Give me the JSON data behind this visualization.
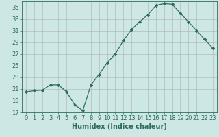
{
  "x": [
    0,
    1,
    2,
    3,
    4,
    5,
    6,
    7,
    8,
    9,
    10,
    11,
    12,
    13,
    14,
    15,
    16,
    17,
    18,
    19,
    20,
    21,
    22,
    23
  ],
  "y": [
    20.5,
    20.7,
    20.8,
    21.7,
    21.7,
    20.5,
    18.3,
    17.3,
    21.7,
    23.5,
    25.5,
    27.0,
    29.3,
    31.2,
    32.5,
    33.7,
    35.3,
    35.6,
    35.5,
    34.0,
    32.5,
    31.0,
    29.5,
    28.0
  ],
  "xlabel": "Humidex (Indice chaleur)",
  "ylim": [
    17,
    36
  ],
  "xlim": [
    -0.5,
    23.5
  ],
  "yticks": [
    17,
    19,
    21,
    23,
    25,
    27,
    29,
    31,
    33,
    35
  ],
  "xticks": [
    0,
    1,
    2,
    3,
    4,
    5,
    6,
    7,
    8,
    9,
    10,
    11,
    12,
    13,
    14,
    15,
    16,
    17,
    18,
    19,
    20,
    21,
    22,
    23
  ],
  "line_color": "#2e6b5e",
  "marker": "D",
  "marker_size": 2.2,
  "bg_color": "#cde8e4",
  "grid_color": "#b0b0b0",
  "label_fontsize": 7,
  "tick_fontsize": 6
}
